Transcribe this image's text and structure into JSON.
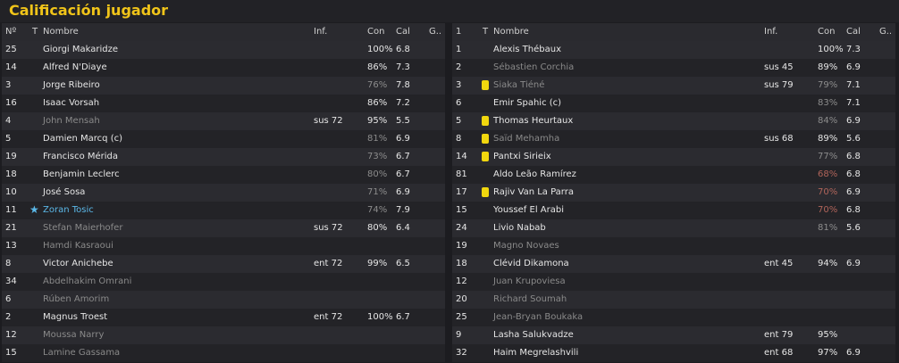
{
  "title": "Calificación jugador",
  "tables": [
    {
      "header": [
        "Nº",
        "T",
        "Nombre",
        "Inf.",
        "Con",
        "Cal",
        "G.."
      ],
      "rows": [
        {
          "no": "25",
          "name": "Giorgi Makaridze",
          "con": "100%",
          "cal": "6.8"
        },
        {
          "no": "14",
          "name": "Alfred N'Diaye",
          "con": "86%",
          "cal": "7.3"
        },
        {
          "no": "3",
          "name": "Jorge Ribeiro",
          "con": "76%",
          "cal": "7.8",
          "con_color": "#8c8c8c"
        },
        {
          "no": "16",
          "name": "Isaac Vorsah",
          "con": "86%",
          "cal": "7.2"
        },
        {
          "no": "4",
          "name": "John Mensah",
          "inf": "sus 72",
          "con": "95%",
          "cal": "5.5",
          "name_color": "#8a8a8a"
        },
        {
          "no": "5",
          "name": "Damien Marcq (c)",
          "con": "81%",
          "cal": "6.9",
          "con_color": "#8c8c8c"
        },
        {
          "no": "19",
          "name": "Francisco Mérida",
          "con": "73%",
          "cal": "6.7",
          "con_color": "#8c8c8c"
        },
        {
          "no": "18",
          "name": "Benjamin Leclerc",
          "con": "80%",
          "cal": "6.7",
          "con_color": "#8c8c8c"
        },
        {
          "no": "10",
          "name": "José Sosa",
          "con": "71%",
          "cal": "6.9",
          "con_color": "#8c8c8c"
        },
        {
          "no": "11",
          "name": "Zoran Tosic",
          "con": "74%",
          "cal": "7.9",
          "con_color": "#8c8c8c",
          "name_color": "#5bb8e8",
          "star": true
        },
        {
          "no": "21",
          "name": "Stefan Maierhofer",
          "inf": "sus 72",
          "con": "80%",
          "cal": "6.4",
          "name_color": "#8a8a8a"
        },
        {
          "no": "13",
          "name": "Hamdi Kasraoui",
          "name_color": "#8a8a8a"
        },
        {
          "no": "8",
          "name": "Victor Anichebe",
          "inf": "ent 72",
          "con": "99%",
          "cal": "6.5"
        },
        {
          "no": "34",
          "name": "Abdelhakim Omrani",
          "name_color": "#8a8a8a"
        },
        {
          "no": "6",
          "name": "Rúben Amorim",
          "name_color": "#8a8a8a"
        },
        {
          "no": "2",
          "name": "Magnus Troest",
          "inf": "ent 72",
          "con": "100%",
          "cal": "6.7"
        },
        {
          "no": "12",
          "name": "Moussa Narry",
          "name_color": "#8a8a8a"
        },
        {
          "no": "15",
          "name": "Lamine Gassama",
          "name_color": "#8a8a8a"
        }
      ]
    },
    {
      "header": [
        "1",
        "T",
        "Nombre",
        "Inf.",
        "Con",
        "Cal",
        "G.."
      ],
      "rows": [
        {
          "no": "1",
          "name": "Alexis Thébaux",
          "con": "100%",
          "cal": "7.3"
        },
        {
          "no": "2",
          "name": "Sébastien Corchia",
          "inf": "sus 45",
          "con": "89%",
          "cal": "6.9",
          "name_color": "#8a8a8a"
        },
        {
          "no": "3",
          "name": "Siaka Tiéné",
          "inf": "sus 79",
          "con": "79%",
          "cal": "7.1",
          "name_color": "#8a8a8a",
          "con_color": "#8c8c8c",
          "card": true
        },
        {
          "no": "6",
          "name": "Emir Spahic (c)",
          "con": "83%",
          "cal": "7.1",
          "con_color": "#8c8c8c"
        },
        {
          "no": "5",
          "name": "Thomas Heurtaux",
          "con": "84%",
          "cal": "6.9",
          "con_color": "#8c8c8c",
          "card": true
        },
        {
          "no": "8",
          "name": "Saïd Mehamha",
          "inf": "sus 68",
          "con": "89%",
          "cal": "5.6",
          "name_color": "#8a8a8a",
          "card": true
        },
        {
          "no": "14",
          "name": "Pantxi Sirieix",
          "con": "77%",
          "cal": "6.8",
          "con_color": "#8c8c8c",
          "card": true
        },
        {
          "no": "81",
          "name": "Aldo Leão Ramírez",
          "con": "68%",
          "cal": "6.8",
          "con_color": "#b0645a"
        },
        {
          "no": "17",
          "name": "Rajiv Van La Parra",
          "con": "70%",
          "cal": "6.9",
          "con_color": "#b0645a",
          "card": true
        },
        {
          "no": "15",
          "name": "Youssef El Arabi",
          "con": "70%",
          "cal": "6.8",
          "con_color": "#b0645a"
        },
        {
          "no": "24",
          "name": "Livio Nabab",
          "con": "81%",
          "cal": "5.6",
          "con_color": "#8c8c8c"
        },
        {
          "no": "19",
          "name": "Magno Novaes",
          "name_color": "#8a8a8a"
        },
        {
          "no": "18",
          "name": "Clévid Dikamona",
          "inf": "ent 45",
          "con": "94%",
          "cal": "6.9"
        },
        {
          "no": "12",
          "name": "Juan Krupoviesa",
          "name_color": "#8a8a8a"
        },
        {
          "no": "20",
          "name": "Richard Soumah",
          "name_color": "#8a8a8a"
        },
        {
          "no": "25",
          "name": "Jean-Bryan Boukaka",
          "name_color": "#8a8a8a"
        },
        {
          "no": "9",
          "name": "Lasha Salukvadze",
          "inf": "ent 79",
          "con": "95%"
        },
        {
          "no": "32",
          "name": "Haim Megrelashvili",
          "inf": "ent 68",
          "con": "97%",
          "cal": "6.9"
        }
      ]
    }
  ]
}
